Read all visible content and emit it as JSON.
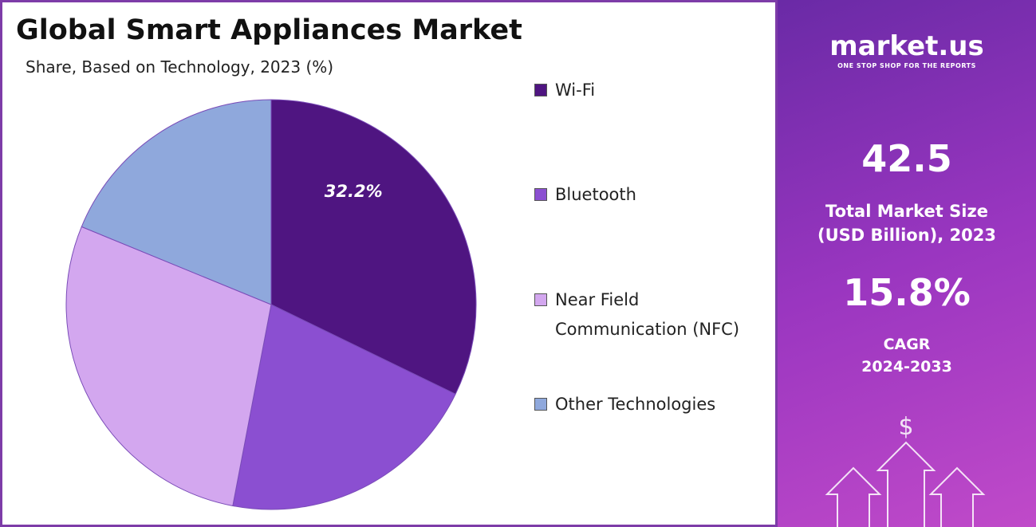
{
  "chart_data": {
    "type": "pie",
    "title": "Global Smart Appliances Market",
    "subtitle": "Share, Based on Technology, 2023 (%)",
    "categories": [
      "Wi-Fi",
      "Bluetooth",
      "Near Field Communication (NFC)",
      "Other Technologies"
    ],
    "values": [
      32.2,
      20.8,
      28.2,
      18.8
    ],
    "value_labels": [
      "32.2%",
      null,
      null,
      null
    ],
    "colors": [
      "#4f1581",
      "#8b4fd1",
      "#d3a7ef",
      "#8fa8dc"
    ]
  },
  "sidebar": {
    "brand": "market.us",
    "tagline": "ONE STOP SHOP FOR THE REPORTS",
    "market_size": "42.5",
    "market_size_label": "Total Market Size (USD Billion), 2023",
    "cagr": "15.8%",
    "cagr_label": "CAGR 2024-2033"
  }
}
